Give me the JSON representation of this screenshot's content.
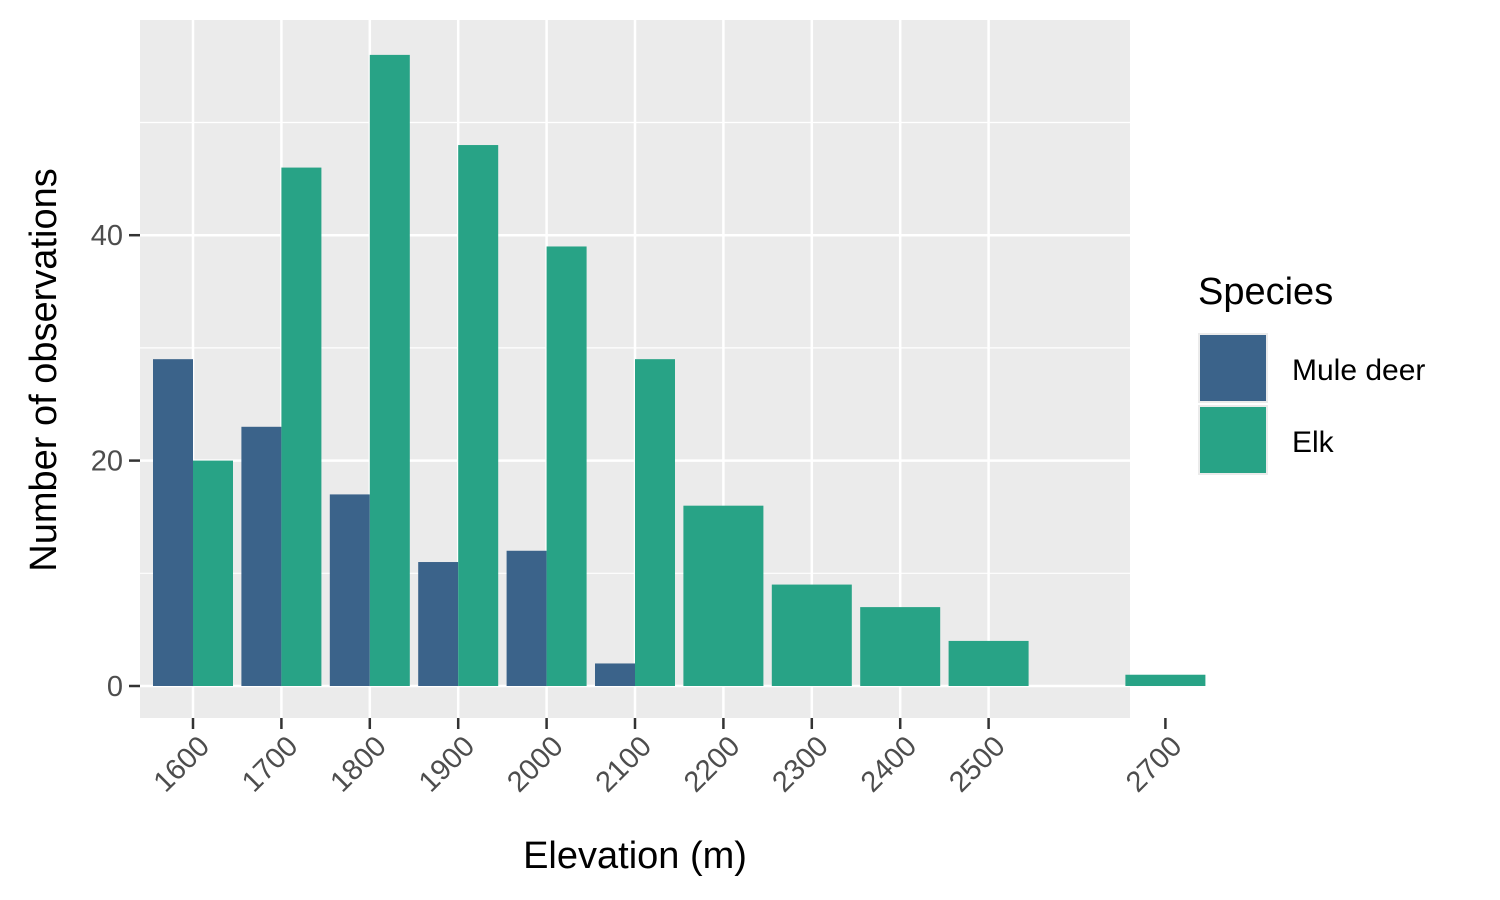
{
  "chart_data": {
    "type": "bar",
    "title": "",
    "xlabel": "Elevation (m)",
    "ylabel": "Number of observations",
    "categories": [
      "1600",
      "1700",
      "1800",
      "1900",
      "2000",
      "2100",
      "2200",
      "2300",
      "2400",
      "2500",
      "2700"
    ],
    "series": [
      {
        "name": "Mule deer",
        "color": "#3b638a",
        "values": [
          29,
          23,
          17,
          11,
          12,
          2,
          null,
          null,
          null,
          null,
          null
        ]
      },
      {
        "name": "Elk",
        "color": "#28a386",
        "values": [
          20,
          46,
          56,
          48,
          39,
          29,
          16,
          9,
          7,
          4,
          1
        ]
      }
    ],
    "yticks": [
      0,
      20,
      40
    ],
    "ylim": [
      0,
      56
    ],
    "legend": {
      "title": "Species",
      "position": "right"
    },
    "grid": true,
    "panel_background": "#ebebeb"
  }
}
